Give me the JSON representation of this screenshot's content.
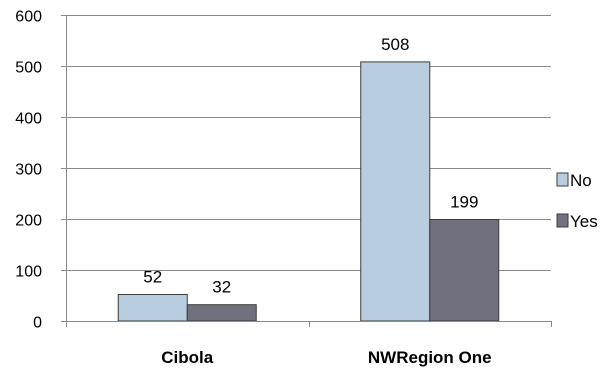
{
  "chart_data": {
    "type": "bar",
    "categories": [
      "Cibola",
      "NWRegion One"
    ],
    "series": [
      {
        "name": "No",
        "values": [
          52,
          508
        ],
        "color": "#b9cde0"
      },
      {
        "name": "Yes",
        "values": [
          32,
          199
        ],
        "color": "#71707f"
      }
    ],
    "ylim": [
      0,
      600
    ],
    "yticks": [
      0,
      100,
      200,
      300,
      400,
      500,
      600
    ],
    "grid": true,
    "legend": "right",
    "data_labels": true,
    "title": "",
    "xlabel": "",
    "ylabel": ""
  }
}
